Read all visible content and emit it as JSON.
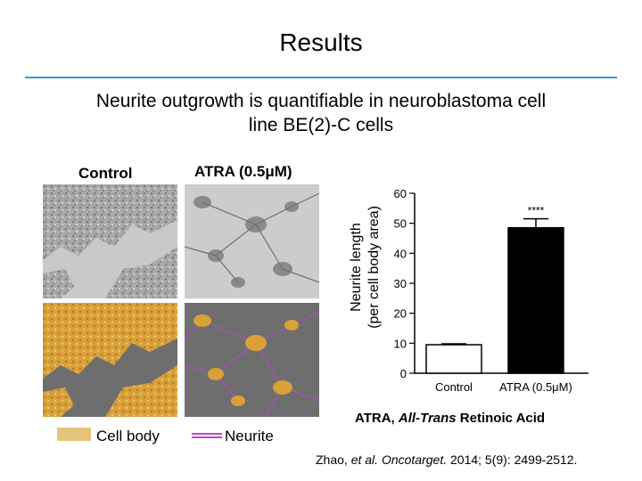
{
  "slide": {
    "title": "Results",
    "subtitle_line1": "Neurite outgrowth is quantifiable in neuroblastoma cell",
    "subtitle_line2": "line BE(2)-C cells"
  },
  "panels": {
    "control_label": "Control",
    "atra_label": "ATRA (0.5μM)"
  },
  "legend": {
    "cell_body": "Cell body",
    "neurite": "Neurite",
    "cell_body_color": "#e6c37a",
    "neurite_color": "#b44bc8"
  },
  "chart_data": {
    "type": "bar",
    "categories": [
      "Control",
      "ATRA (0.5μM)"
    ],
    "values": [
      9.5,
      48.5
    ],
    "errors": [
      0.3,
      3.0
    ],
    "bar_colors": [
      "#ffffff",
      "#000000"
    ],
    "ylabel_line1": "Neurite length",
    "ylabel_line2": "(per cell body area)",
    "ylim": [
      0,
      60
    ],
    "yticks": [
      0,
      10,
      20,
      30,
      40,
      50,
      60
    ],
    "significance": "****",
    "grid": false
  },
  "footer": {
    "abbrev_prefix": "ATRA, ",
    "abbrev_italic": "All-Trans",
    "abbrev_suffix": " Retinoic Acid",
    "citation_prefix": "Zhao, ",
    "citation_italic": "et al. Oncotarget.",
    "citation_suffix": " 2014; 5(9): 2499-2512."
  }
}
